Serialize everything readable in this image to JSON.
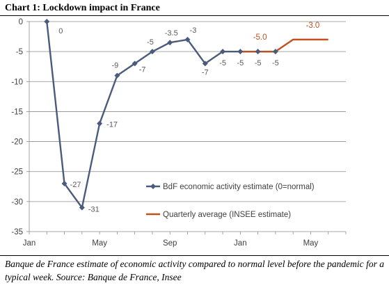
{
  "title": "Chart 1: Lockdown impact in France",
  "caption": "Banque de France estimate of economic activity compared to normal level before the pandemic for a typical week. Source: Banque de France, Insee",
  "chart_data": {
    "type": "line",
    "ylim": [
      -35,
      0
    ],
    "yticks": [
      0,
      -5,
      -10,
      -15,
      -20,
      -25,
      -30,
      -35
    ],
    "xlim": [
      0,
      18
    ],
    "xticks": [
      {
        "x": 0,
        "label": "Jan"
      },
      {
        "x": 4,
        "label": "May"
      },
      {
        "x": 8,
        "label": "Sep"
      },
      {
        "x": 12,
        "label": "Jan"
      },
      {
        "x": 16,
        "label": "May"
      }
    ],
    "grid": true,
    "legend_position": "inside-bottom-right",
    "series": [
      {
        "name": "BdF economic activity estimate (0=normal)",
        "color": "#4a5b7b",
        "marker": "diamond",
        "points": [
          {
            "x": 1,
            "y": 0,
            "label": "0"
          },
          {
            "x": 2,
            "y": -27,
            "label": "-27"
          },
          {
            "x": 3,
            "y": -31,
            "label": "-31"
          },
          {
            "x": 4,
            "y": -17,
            "label": "-17"
          },
          {
            "x": 5,
            "y": -9,
            "label": "-9"
          },
          {
            "x": 6,
            "y": -7,
            "label": "-7"
          },
          {
            "x": 7,
            "y": -5,
            "label": "-5"
          },
          {
            "x": 8,
            "y": -3.5,
            "label": "-3.5"
          },
          {
            "x": 9,
            "y": -3,
            "label": "-3"
          },
          {
            "x": 10,
            "y": -7,
            "label": "-7"
          },
          {
            "x": 11,
            "y": -5,
            "label": "-5"
          },
          {
            "x": 12,
            "y": -5,
            "label": "-5"
          },
          {
            "x": 13,
            "y": -5,
            "label": "-5"
          },
          {
            "x": 14,
            "y": -5,
            "label": "-5"
          }
        ]
      },
      {
        "name": "Quarterly average (INSEE estimate)",
        "color": "#c0511f",
        "marker": "none",
        "points": [
          {
            "x": 12,
            "y": -5
          },
          {
            "x": 14,
            "y": -5
          },
          {
            "x": 15,
            "y": -3
          },
          {
            "x": 17,
            "y": -3
          }
        ],
        "annotations": [
          {
            "x": 13,
            "y": -5,
            "label": "-5.0"
          },
          {
            "x": 16,
            "y": -3,
            "label": "-3.0"
          }
        ]
      }
    ]
  }
}
